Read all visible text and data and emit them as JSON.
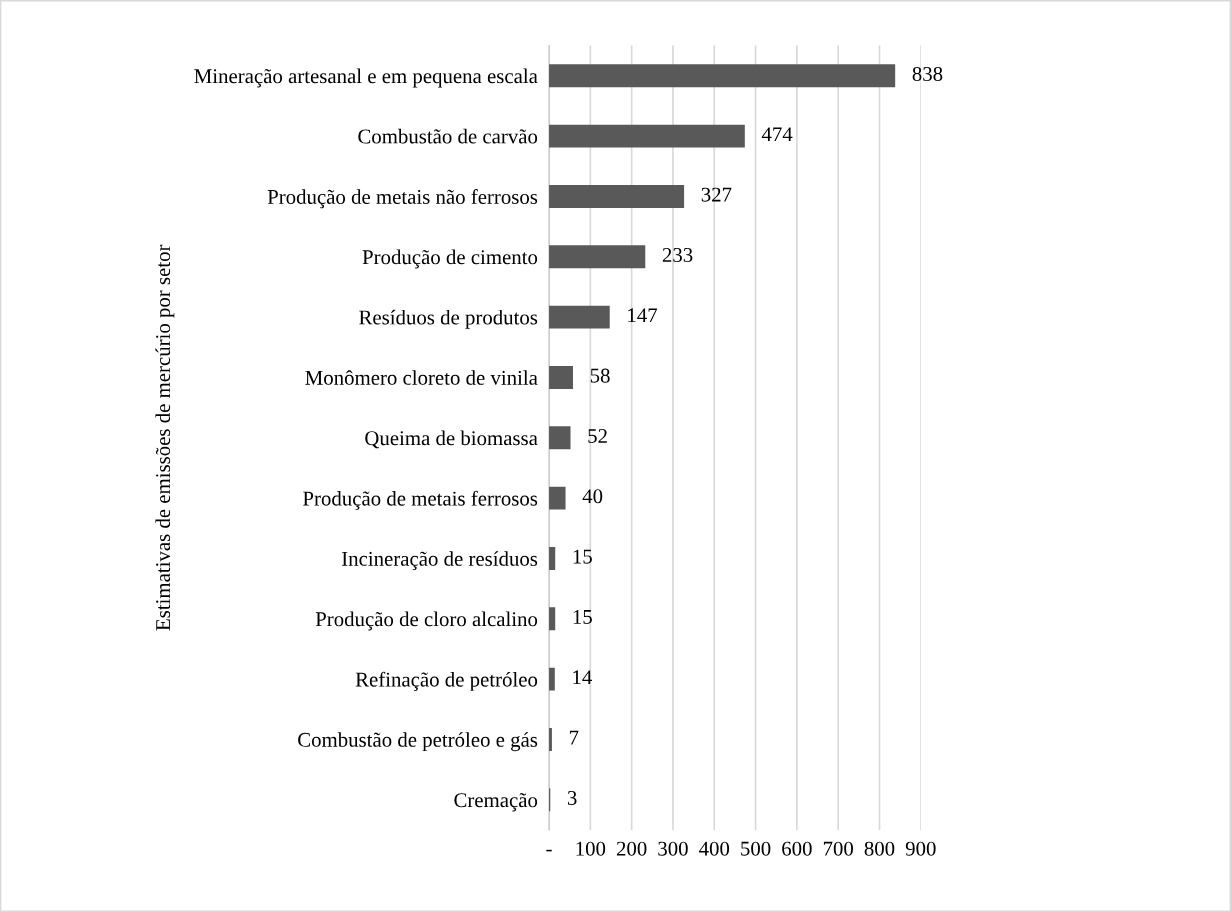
{
  "chart_data": {
    "type": "bar",
    "orientation": "horizontal",
    "ylabel": "Estimativas de emissões de mercúrio por setor",
    "categories": [
      "Mineração artesanal e em pequena escala",
      "Combustão de carvão",
      "Produção de metais não ferrosos",
      "Produção de cimento",
      "Resíduos de produtos",
      "Monômero cloreto de vinila",
      "Queima de biomassa",
      "Produção de metais ferrosos",
      "Incineração de resíduos",
      "Produção de cloro alcalino",
      "Refinação de petróleo",
      "Combustão de petróleo e gás",
      "Cremação"
    ],
    "values": [
      838,
      474,
      327,
      233,
      147,
      58,
      52,
      40,
      15,
      15,
      14,
      7,
      3
    ],
    "color": "#595959",
    "xlim": [
      0,
      900
    ],
    "xticks": [
      {
        "value": 0,
        "label": "-"
      },
      100,
      200,
      300,
      400,
      500,
      600,
      700,
      800,
      900
    ],
    "grid": "x",
    "data_labels": true
  }
}
